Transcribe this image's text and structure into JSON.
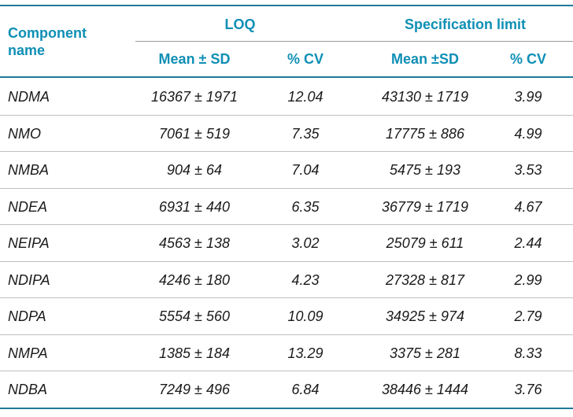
{
  "header": {
    "component_name": "Component\nname",
    "loq": "LOQ",
    "spec_limit": "Specification limit",
    "loq_mean": "Mean ± SD",
    "loq_cv": "% CV",
    "spec_mean": "Mean ±SD",
    "spec_cv": "% CV"
  },
  "rows": [
    {
      "name": "NDMA",
      "loq_mean": "16367 ± 1971",
      "loq_cv": "12.04",
      "spec_mean": "43130 ± 1719",
      "spec_cv": "3.99"
    },
    {
      "name": "NMO",
      "loq_mean": "7061 ± 519",
      "loq_cv": "7.35",
      "spec_mean": "17775 ± 886",
      "spec_cv": "4.99"
    },
    {
      "name": "NMBA",
      "loq_mean": "904 ± 64",
      "loq_cv": "7.04",
      "spec_mean": "5475 ± 193",
      "spec_cv": "3.53"
    },
    {
      "name": "NDEA",
      "loq_mean": "6931 ± 440",
      "loq_cv": "6.35",
      "spec_mean": "36779 ± 1719",
      "spec_cv": "4.67"
    },
    {
      "name": "NEIPA",
      "loq_mean": "4563 ± 138",
      "loq_cv": "3.02",
      "spec_mean": "25079 ± 611",
      "spec_cv": "2.44"
    },
    {
      "name": "NDIPA",
      "loq_mean": "4246 ± 180",
      "loq_cv": "4.23",
      "spec_mean": "27328 ± 817",
      "spec_cv": "2.99"
    },
    {
      "name": "NDPA",
      "loq_mean": "5554 ± 560",
      "loq_cv": "10.09",
      "spec_mean": "34925 ± 974",
      "spec_cv": "2.79"
    },
    {
      "name": "NMPA",
      "loq_mean": "1385 ± 184",
      "loq_cv": "13.29",
      "spec_mean": "3375 ± 281",
      "spec_cv": "8.33"
    },
    {
      "name": "NDBA",
      "loq_mean": "7249 ± 496",
      "loq_cv": "6.84",
      "spec_mean": "38446 ± 1444",
      "spec_cv": "3.76"
    }
  ]
}
